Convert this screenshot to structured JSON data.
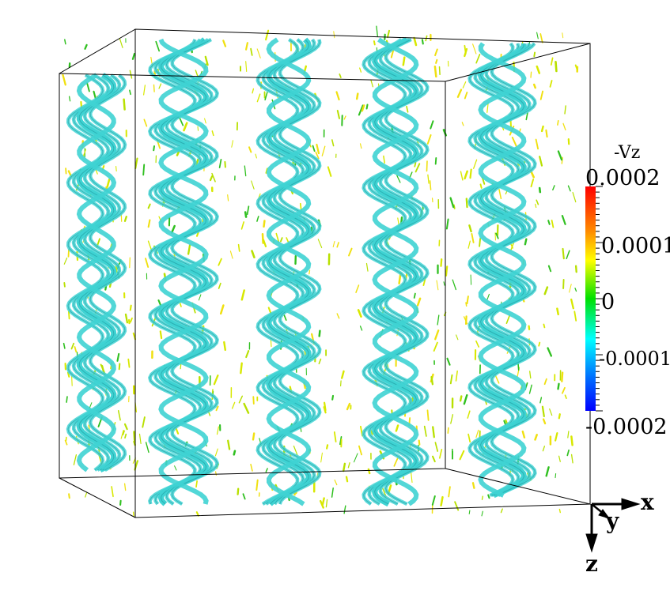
{
  "colorbar": {
    "title": "-Vz",
    "ticks": [
      "0.0002",
      "0.0001",
      "0",
      "-0.0001",
      "-0.0002"
    ],
    "tick_values": [
      0.0002,
      0.0001,
      0,
      -0.0001,
      -0.0002
    ],
    "min": -0.0002,
    "max": 0.0002,
    "colors": [
      "#ff0000",
      "#ff8c00",
      "#ffff00",
      "#00e000",
      "#00ffff",
      "#0060ff",
      "#0000ff"
    ]
  },
  "axes": {
    "x_label": "x",
    "y_label": "y",
    "z_label": "z"
  },
  "scene": {
    "isosurface_color": "#3fd3d3",
    "vector_colors": [
      "#b8e000",
      "#d8e800",
      "#30c020",
      "#f0e010"
    ],
    "helix_columns": 5
  }
}
